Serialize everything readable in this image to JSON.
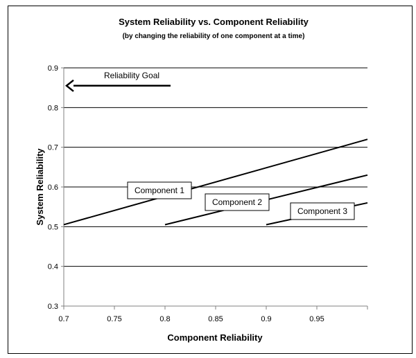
{
  "chart_data": {
    "type": "line",
    "title": "System Reliability vs. Component Reliability",
    "subtitle": "(by changing the reliability of one component at a time)",
    "xlabel": "Component Reliability",
    "ylabel": "System Reliability",
    "xlim": [
      0.7,
      1.0
    ],
    "ylim": [
      0.3,
      0.9
    ],
    "x_ticks": [
      "0.7",
      "0.75",
      "0.8",
      "0.85",
      "0.9",
      "0.95"
    ],
    "x_tick_values": [
      0.7,
      0.75,
      0.8,
      0.85,
      0.9,
      0.95
    ],
    "y_ticks": [
      "0.3",
      "0.4",
      "0.5",
      "0.6",
      "0.7",
      "0.8",
      "0.9"
    ],
    "y_tick_values": [
      0.3,
      0.4,
      0.5,
      0.6,
      0.7,
      0.8,
      0.9
    ],
    "grid": "horizontal",
    "series": [
      {
        "name": "Component 1",
        "x": [
          0.7,
          1.0
        ],
        "y": [
          0.505,
          0.72
        ]
      },
      {
        "name": "Component 2",
        "x": [
          0.8,
          1.0
        ],
        "y": [
          0.505,
          0.63
        ]
      },
      {
        "name": "Component 3",
        "x": [
          0.9,
          1.0
        ],
        "y": [
          0.505,
          0.56
        ]
      }
    ],
    "annotations": {
      "goal_text": "Reliability Goal",
      "goal_value": 0.855
    }
  }
}
